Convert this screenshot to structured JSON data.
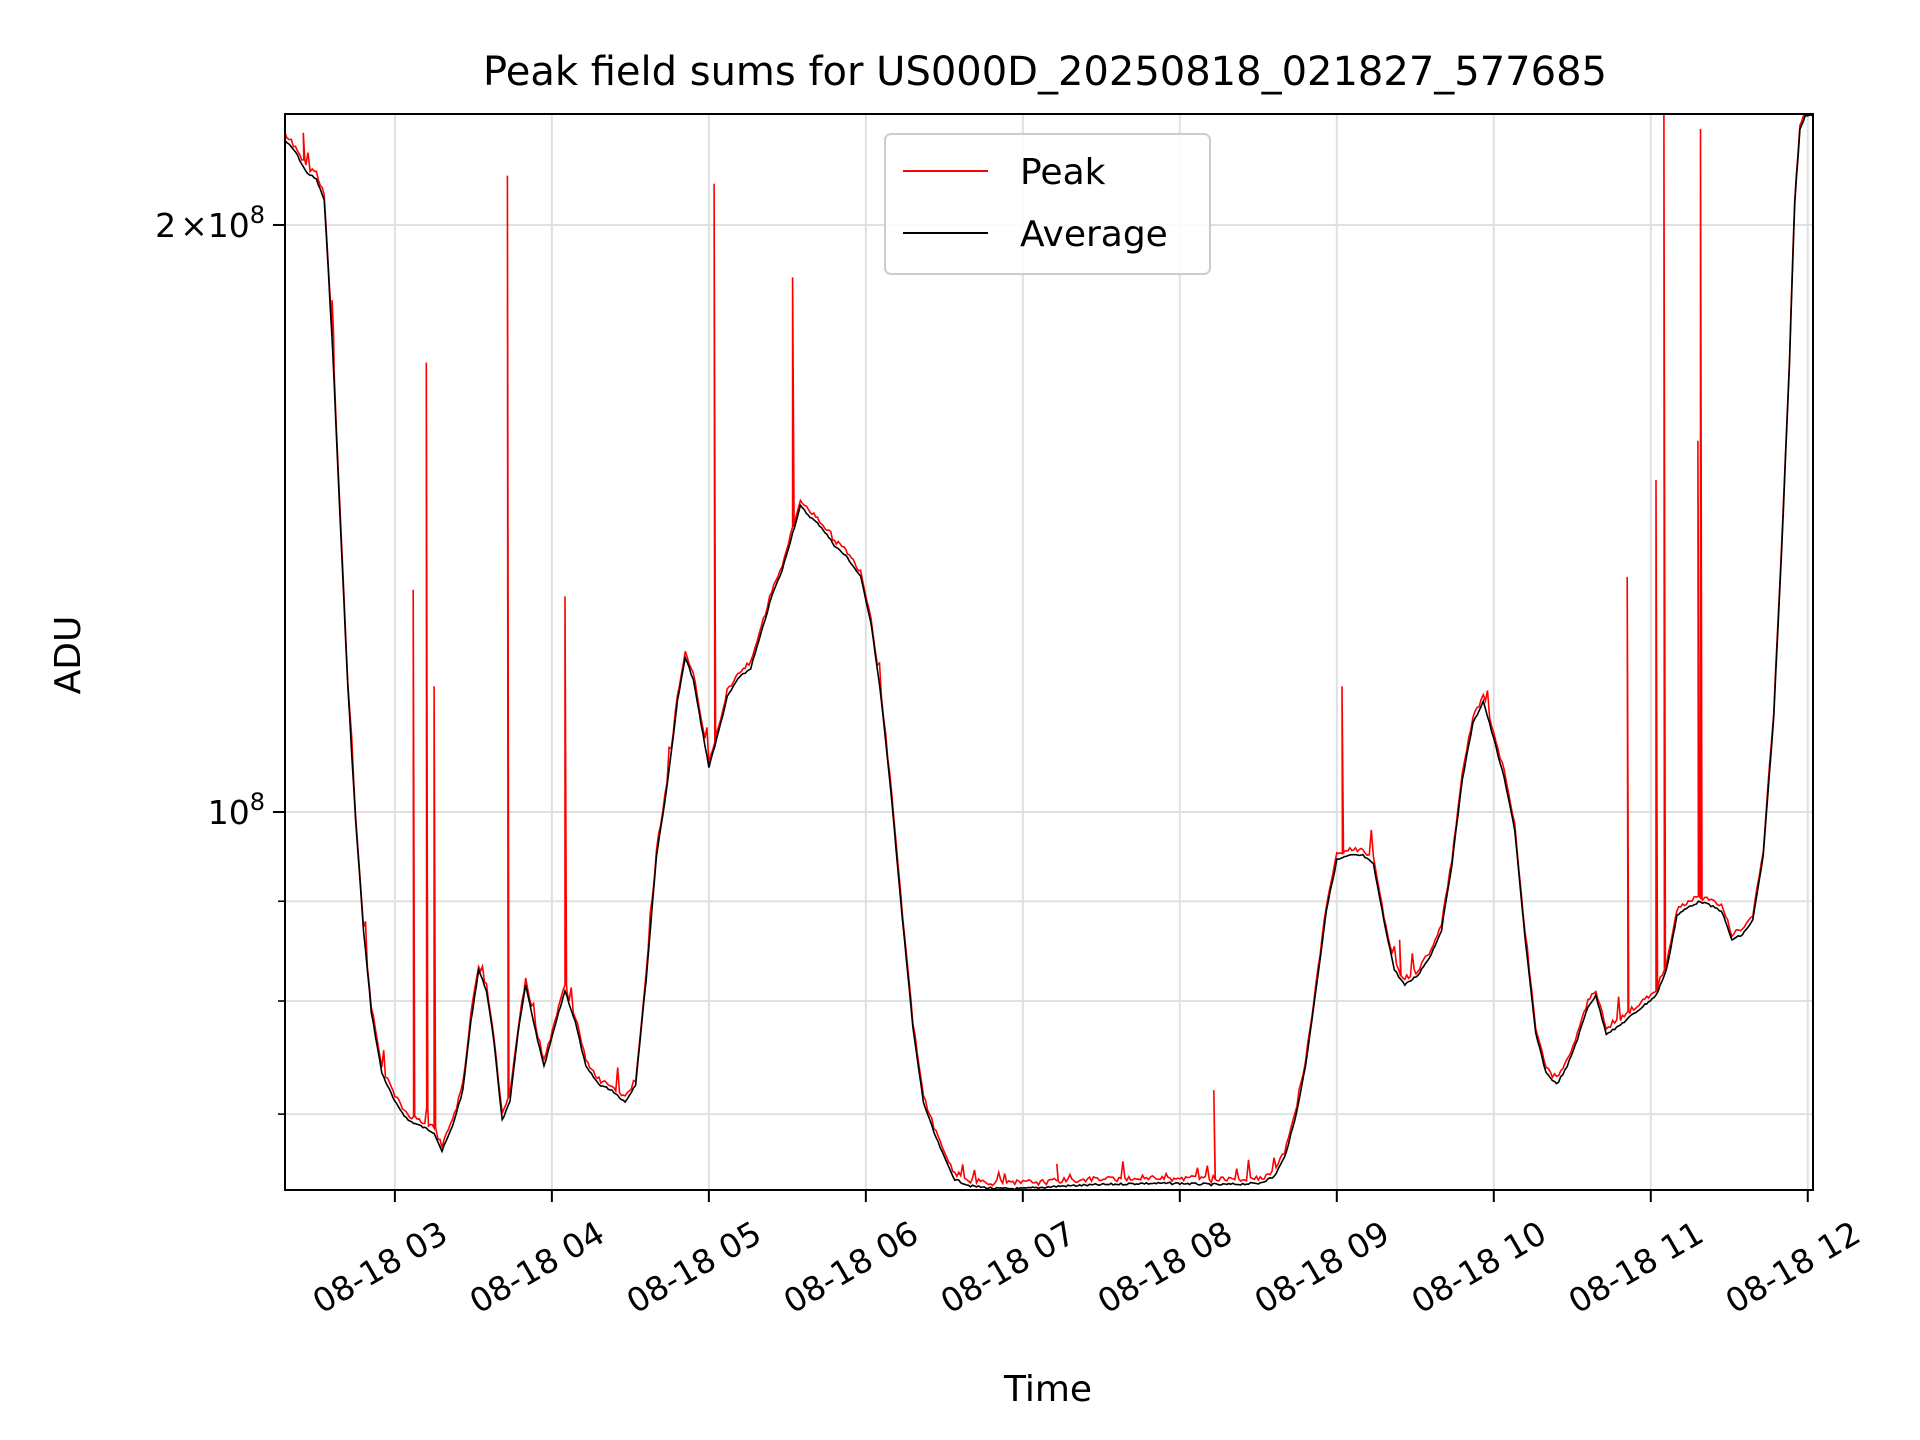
{
  "chart_data": {
    "type": "line",
    "title": "Peak field sums for US000D_20250818_021827_577685",
    "xlabel": "Time",
    "ylabel": "ADU",
    "y_scale": "log",
    "xlim": [
      "08-18 02:18",
      "08-18 12:02"
    ],
    "ylim": [
      64000000,
      228000000
    ],
    "grid": true,
    "legend_position": "top-center",
    "x_ticks": [
      "08-18 03",
      "08-18 04",
      "08-18 05",
      "08-18 06",
      "08-18 07",
      "08-18 08",
      "08-18 09",
      "08-18 10",
      "08-18 11",
      "08-18 12"
    ],
    "y_ticks_labeled": [
      {
        "value": 200000000,
        "mantissa": "2",
        "times": "×",
        "base": "10",
        "exp": "8"
      },
      {
        "value": 100000000,
        "base": "10",
        "exp": "8"
      }
    ],
    "y_ticks_minor": [
      70000000,
      80000000,
      90000000
    ],
    "series": [
      {
        "name": "Average",
        "color": "#000000",
        "points": [
          [
            "08-18 02:18",
            221000000
          ],
          [
            "08-18 02:22",
            218000000
          ],
          [
            "08-18 02:26",
            213000000
          ],
          [
            "08-18 02:30",
            211000000
          ],
          [
            "08-18 02:33",
            206000000
          ],
          [
            "08-18 02:36",
            175000000
          ],
          [
            "08-18 02:39",
            142000000
          ],
          [
            "08-18 02:42",
            116000000
          ],
          [
            "08-18 02:45",
            99000000
          ],
          [
            "08-18 02:48",
            87000000
          ],
          [
            "08-18 02:51",
            79000000
          ],
          [
            "08-18 02:55",
            73500000
          ],
          [
            "08-18 03:00",
            71000000
          ],
          [
            "08-18 03:05",
            69500000
          ],
          [
            "08-18 03:10",
            69000000
          ],
          [
            "08-18 03:15",
            68500000
          ],
          [
            "08-18 03:18",
            67000000
          ],
          [
            "08-18 03:22",
            69000000
          ],
          [
            "08-18 03:26",
            72000000
          ],
          [
            "08-18 03:29",
            78000000
          ],
          [
            "08-18 03:32",
            83000000
          ],
          [
            "08-18 03:35",
            81000000
          ],
          [
            "08-18 03:38",
            76000000
          ],
          [
            "08-18 03:41",
            69500000
          ],
          [
            "08-18 03:44",
            71000000
          ],
          [
            "08-18 03:47",
            77000000
          ],
          [
            "08-18 03:50",
            81500000
          ],
          [
            "08-18 03:53",
            78000000
          ],
          [
            "08-18 03:57",
            74000000
          ],
          [
            "08-18 04:01",
            77500000
          ],
          [
            "08-18 04:05",
            81000000
          ],
          [
            "08-18 04:09",
            78000000
          ],
          [
            "08-18 04:13",
            74000000
          ],
          [
            "08-18 04:18",
            72500000
          ],
          [
            "08-18 04:23",
            72000000
          ],
          [
            "08-18 04:28",
            71000000
          ],
          [
            "08-18 04:32",
            72500000
          ],
          [
            "08-18 04:36",
            82000000
          ],
          [
            "08-18 04:40",
            95000000
          ],
          [
            "08-18 04:44",
            103000000
          ],
          [
            "08-18 04:48",
            114000000
          ],
          [
            "08-18 04:51",
            120000000
          ],
          [
            "08-18 04:54",
            117000000
          ],
          [
            "08-18 04:57",
            111000000
          ],
          [
            "08-18 05:00",
            105500000
          ],
          [
            "08-18 05:03",
            109000000
          ],
          [
            "08-18 05:07",
            114500000
          ],
          [
            "08-18 05:11",
            117000000
          ],
          [
            "08-18 05:16",
            118500000
          ],
          [
            "08-18 05:20",
            123500000
          ],
          [
            "08-18 05:24",
            129000000
          ],
          [
            "08-18 05:28",
            133000000
          ],
          [
            "08-18 05:32",
            139000000
          ],
          [
            "08-18 05:35",
            143500000
          ],
          [
            "08-18 05:38",
            142000000
          ],
          [
            "08-18 05:43",
            140000000
          ],
          [
            "08-18 05:48",
            137000000
          ],
          [
            "08-18 05:53",
            135000000
          ],
          [
            "08-18 05:58",
            132000000
          ],
          [
            "08-18 06:02",
            125000000
          ],
          [
            "08-18 06:06",
            114000000
          ],
          [
            "08-18 06:10",
            101000000
          ],
          [
            "08-18 06:14",
            88000000
          ],
          [
            "08-18 06:18",
            77500000
          ],
          [
            "08-18 06:22",
            71000000
          ],
          [
            "08-18 06:26",
            68500000
          ],
          [
            "08-18 06:30",
            66500000
          ],
          [
            "08-18 06:34",
            64800000
          ],
          [
            "08-18 06:40",
            64300000
          ],
          [
            "08-18 06:50",
            64100000
          ],
          [
            "08-18 07:00",
            64100000
          ],
          [
            "08-18 07:15",
            64300000
          ],
          [
            "08-18 07:30",
            64400000
          ],
          [
            "08-18 07:45",
            64500000
          ],
          [
            "08-18 08:00",
            64500000
          ],
          [
            "08-18 08:15",
            64400000
          ],
          [
            "08-18 08:30",
            64500000
          ],
          [
            "08-18 08:36",
            65000000
          ],
          [
            "08-18 08:40",
            66500000
          ],
          [
            "08-18 08:44",
            69500000
          ],
          [
            "08-18 08:48",
            74000000
          ],
          [
            "08-18 08:52",
            81000000
          ],
          [
            "08-18 08:56",
            89000000
          ],
          [
            "08-18 09:00",
            94500000
          ],
          [
            "08-18 09:05",
            95000000
          ],
          [
            "08-18 09:10",
            95000000
          ],
          [
            "08-18 09:14",
            94000000
          ],
          [
            "08-18 09:18",
            88000000
          ],
          [
            "08-18 09:22",
            83000000
          ],
          [
            "08-18 09:26",
            81500000
          ],
          [
            "08-18 09:31",
            82500000
          ],
          [
            "08-18 09:36",
            84500000
          ],
          [
            "08-18 09:40",
            87000000
          ],
          [
            "08-18 09:44",
            94000000
          ],
          [
            "08-18 09:48",
            104000000
          ],
          [
            "08-18 09:52",
            111000000
          ],
          [
            "08-18 09:56",
            114000000
          ],
          [
            "08-18 10:00",
            109000000
          ],
          [
            "08-18 10:04",
            104000000
          ],
          [
            "08-18 10:08",
            98000000
          ],
          [
            "08-18 10:12",
            86000000
          ],
          [
            "08-18 10:16",
            77000000
          ],
          [
            "08-18 10:20",
            73500000
          ],
          [
            "08-18 10:24",
            72500000
          ],
          [
            "08-18 10:28",
            74000000
          ],
          [
            "08-18 10:32",
            76500000
          ],
          [
            "08-18 10:36",
            79500000
          ],
          [
            "08-18 10:39",
            80500000
          ],
          [
            "08-18 10:43",
            77000000
          ],
          [
            "08-18 10:47",
            77500000
          ],
          [
            "08-18 10:52",
            78500000
          ],
          [
            "08-18 10:57",
            79500000
          ],
          [
            "08-18 11:02",
            80500000
          ],
          [
            "08-18 11:06",
            83000000
          ],
          [
            "08-18 11:10",
            88500000
          ],
          [
            "08-18 11:15",
            89500000
          ],
          [
            "08-18 11:19",
            90000000
          ],
          [
            "08-18 11:23",
            89500000
          ],
          [
            "08-18 11:27",
            89000000
          ],
          [
            "08-18 11:31",
            86000000
          ],
          [
            "08-18 11:35",
            86500000
          ],
          [
            "08-18 11:39",
            88000000
          ],
          [
            "08-18 11:43",
            95000000
          ],
          [
            "08-18 11:47",
            112000000
          ],
          [
            "08-18 11:50",
            136000000
          ],
          [
            "08-18 11:53",
            170000000
          ],
          [
            "08-18 11:55",
            205000000
          ],
          [
            "08-18 11:57",
            224000000
          ],
          [
            "08-18 11:59",
            227500000
          ],
          [
            "08-18 12:02",
            227500000
          ]
        ]
      },
      {
        "name": "Peak",
        "color": "#ff0000",
        "spikes": [
          [
            "08-18 02:25",
            223000000
          ],
          [
            "08-18 02:36",
            183000000
          ],
          [
            "08-18 03:07",
            130000000
          ],
          [
            "08-18 03:12",
            170000000
          ],
          [
            "08-18 03:15",
            116000000
          ],
          [
            "08-18 03:43",
            212000000
          ],
          [
            "08-18 04:05",
            129000000
          ],
          [
            "08-18 05:02",
            210000000
          ],
          [
            "08-18 05:32",
            188000000
          ],
          [
            "08-18 07:13",
            66000000
          ],
          [
            "08-18 08:13",
            72000000
          ],
          [
            "08-18 09:02",
            116000000
          ],
          [
            "08-18 09:24",
            86000000
          ],
          [
            "08-18 10:51",
            132000000
          ],
          [
            "08-18 11:02",
            148000000
          ],
          [
            "08-18 11:05",
            228000000
          ],
          [
            "08-18 11:18",
            155000000
          ],
          [
            "08-18 11:19",
            224000000
          ]
        ]
      }
    ]
  }
}
